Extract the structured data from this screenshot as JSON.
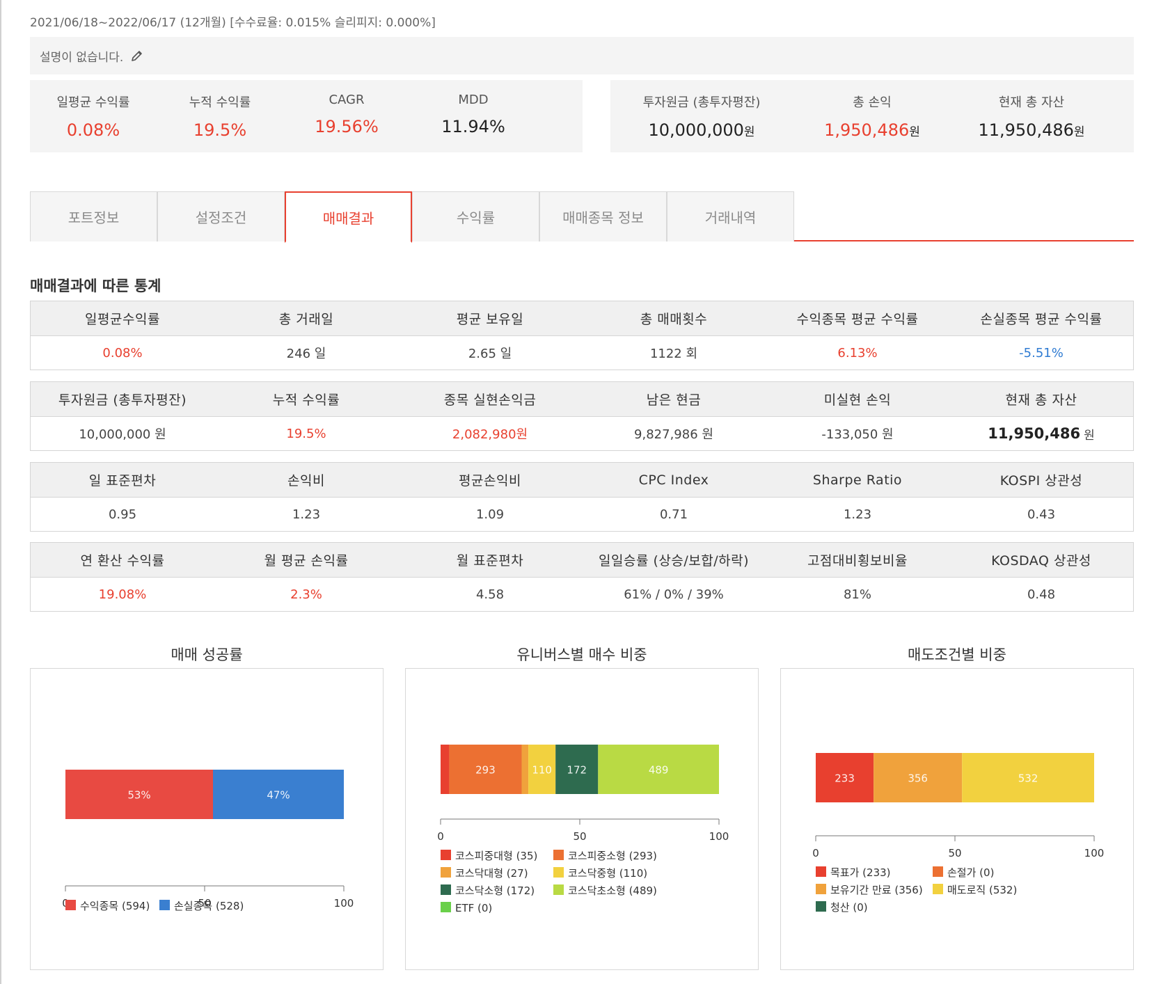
{
  "header": {
    "period": "2021/06/18~2022/06/17 (12개월) [수수료율: 0.015% 슬리피지: 0.000%]",
    "description": "설명이 없습니다."
  },
  "summary_left": [
    {
      "label": "일평균 수익률",
      "value": "0.08%",
      "red": true
    },
    {
      "label": "누적 수익률",
      "value": "19.5%",
      "red": true
    },
    {
      "label": "CAGR",
      "value": "19.56%",
      "red": true
    },
    {
      "label": "MDD",
      "value": "11.94%",
      "red": false
    }
  ],
  "summary_right": [
    {
      "label": "투자원금 (총투자평잔)",
      "value": "10,000,000",
      "unit": "원",
      "red": false
    },
    {
      "label": "총 손익",
      "value": "1,950,486",
      "unit": "원",
      "red": true
    },
    {
      "label": "현재 총 자산",
      "value": "11,950,486",
      "unit": "원",
      "red": false
    }
  ],
  "tabs": [
    {
      "label": "포트정보",
      "active": false
    },
    {
      "label": "설정조건",
      "active": false
    },
    {
      "label": "매매결과",
      "active": true
    },
    {
      "label": "수익률",
      "active": false
    },
    {
      "label": "매매종목 정보",
      "active": false
    },
    {
      "label": "거래내역",
      "active": false
    }
  ],
  "section_title": "매매결과에 따른 통계",
  "stats": [
    {
      "headers": [
        "일평균수익률",
        "총 거래일",
        "평균 보유일",
        "총 매매횟수",
        "수익종목 평균 수익률",
        "손실종목 평균 수익률"
      ],
      "values": [
        {
          "v": "0.08%",
          "color": "red"
        },
        {
          "v": "246 일",
          "color": ""
        },
        {
          "v": "2.65 일",
          "color": ""
        },
        {
          "v": "1122 회",
          "color": ""
        },
        {
          "v": "6.13%",
          "color": "red"
        },
        {
          "v": "-5.51%",
          "color": "blue"
        }
      ]
    },
    {
      "headers": [
        "투자원금 (총투자평잔)",
        "누적 수익률",
        "종목 실현손익금",
        "남은 현금",
        "미실현 손익",
        "현재 총 자산"
      ],
      "values": [
        {
          "v": "10,000,000 원",
          "color": ""
        },
        {
          "v": "19.5%",
          "color": "red"
        },
        {
          "v": "2,082,980원",
          "color": "red"
        },
        {
          "v": "9,827,986 원",
          "color": ""
        },
        {
          "v": "-133,050 원",
          "color": ""
        },
        {
          "v": "11,950,486",
          "unit": "원",
          "color": "bold"
        }
      ]
    },
    {
      "headers": [
        "일 표준편차",
        "손익비",
        "평균손익비",
        "CPC Index",
        "Sharpe Ratio",
        "KOSPI 상관성"
      ],
      "values": [
        {
          "v": "0.95",
          "color": ""
        },
        {
          "v": "1.23",
          "color": ""
        },
        {
          "v": "1.09",
          "color": ""
        },
        {
          "v": "0.71",
          "color": ""
        },
        {
          "v": "1.23",
          "color": ""
        },
        {
          "v": "0.43",
          "color": ""
        }
      ]
    },
    {
      "headers": [
        "연 환산 수익률",
        "월 평균 손익률",
        "월 표준편차",
        "일일승률 (상승/보합/하락)",
        "고점대비횡보비율",
        "KOSDAQ 상관성"
      ],
      "values": [
        {
          "v": "19.08%",
          "color": "red"
        },
        {
          "v": "2.3%",
          "color": "red"
        },
        {
          "v": "4.58",
          "color": ""
        },
        {
          "v": "61% / 0% / 39%",
          "color": ""
        },
        {
          "v": "81%",
          "color": ""
        },
        {
          "v": "0.48",
          "color": ""
        }
      ]
    }
  ],
  "chart_data": [
    {
      "type": "bar",
      "orientation": "horizontal-stacked",
      "title": "매매 성공률",
      "xlim": [
        0,
        100
      ],
      "xticks": [
        0,
        50,
        100
      ],
      "segment_labels": [
        "53%",
        "47%"
      ],
      "series": [
        {
          "name": "수익종목 (594)",
          "value": 53,
          "color": "#e84a42"
        },
        {
          "name": "손실종목 (528)",
          "value": 47,
          "color": "#3a7fd0"
        }
      ]
    },
    {
      "type": "bar",
      "orientation": "horizontal-stacked",
      "title": "유니버스별 매수 비중",
      "xlim": [
        0,
        100
      ],
      "xticks": [
        0,
        50,
        100
      ],
      "series": [
        {
          "name": "코스피중대형 (35)",
          "value": 35,
          "color": "#e8402f",
          "label": ""
        },
        {
          "name": "코스피중소형 (293)",
          "value": 293,
          "color": "#ec7032",
          "label": "293"
        },
        {
          "name": "코스닥대형 (27)",
          "value": 27,
          "color": "#f0a23c",
          "label": ""
        },
        {
          "name": "코스닥중형 (110)",
          "value": 110,
          "color": "#f2d13f",
          "label": "110"
        },
        {
          "name": "코스닥소형 (172)",
          "value": 172,
          "color": "#2e6b4f",
          "label": "172"
        },
        {
          "name": "코스닥초소형 (489)",
          "value": 489,
          "color": "#b9da44",
          "label": "489"
        },
        {
          "name": "ETF (0)",
          "value": 0,
          "color": "#6ad04a",
          "label": ""
        }
      ]
    },
    {
      "type": "bar",
      "orientation": "horizontal-stacked",
      "title": "매도조건별 비중",
      "xlim": [
        0,
        100
      ],
      "xticks": [
        0,
        50,
        100
      ],
      "series": [
        {
          "name": "목표가 (233)",
          "value": 233,
          "color": "#e8402f",
          "label": "233"
        },
        {
          "name": "손절가 (0)",
          "value": 0,
          "color": "#ec7032",
          "label": ""
        },
        {
          "name": "보유기간 만료 (356)",
          "value": 356,
          "color": "#f0a23c",
          "label": "356"
        },
        {
          "name": "매도로직 (532)",
          "value": 532,
          "color": "#f2d13f",
          "label": "532"
        },
        {
          "name": "청산 (0)",
          "value": 0,
          "color": "#2e6b4f",
          "label": ""
        }
      ]
    }
  ]
}
